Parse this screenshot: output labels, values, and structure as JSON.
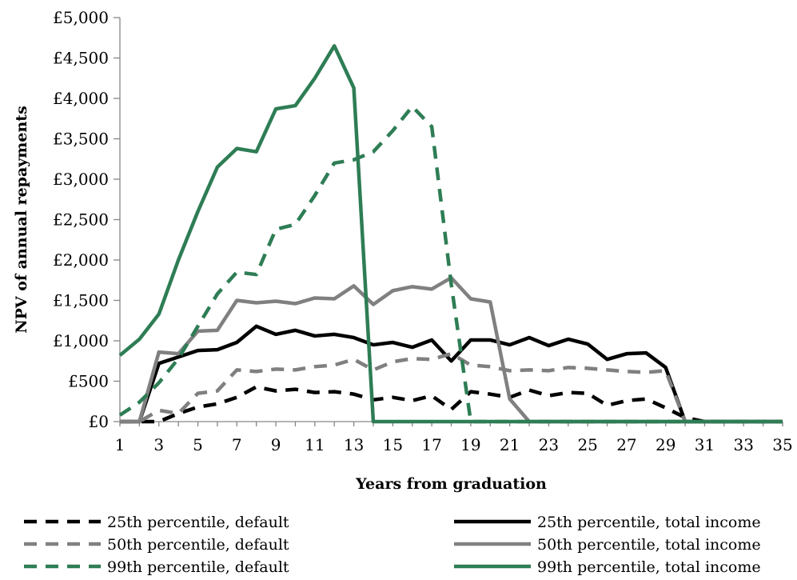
{
  "chart_data": {
    "type": "line",
    "title": "",
    "xlabel": "Years from graduation",
    "ylabel": "NPV of annual repayments",
    "xlim": [
      1,
      35
    ],
    "ylim": [
      0,
      5000
    ],
    "x_ticks": [
      1,
      3,
      5,
      7,
      9,
      11,
      13,
      15,
      17,
      19,
      21,
      23,
      25,
      27,
      29,
      31,
      33,
      35
    ],
    "y_ticks": [
      {
        "value": 0,
        "label": "£0"
      },
      {
        "value": 500,
        "label": "£500"
      },
      {
        "value": 1000,
        "label": "£1,000"
      },
      {
        "value": 1500,
        "label": "£1,500"
      },
      {
        "value": 2000,
        "label": "£2,000"
      },
      {
        "value": 2500,
        "label": "£2,500"
      },
      {
        "value": 3000,
        "label": "£3,000"
      },
      {
        "value": 3500,
        "label": "£3,500"
      },
      {
        "value": 4000,
        "label": "£4,000"
      },
      {
        "value": 4500,
        "label": "£4,500"
      },
      {
        "value": 5000,
        "label": "£5,000"
      }
    ],
    "grid": false,
    "legend_position": "bottom",
    "x": [
      1,
      2,
      3,
      4,
      5,
      6,
      7,
      8,
      9,
      10,
      11,
      12,
      13,
      14,
      15,
      16,
      17,
      18,
      19,
      20,
      21,
      22,
      23,
      24,
      25,
      26,
      27,
      28,
      29,
      30,
      31,
      32,
      33,
      34,
      35
    ],
    "series": [
      {
        "name": "25th percentile, default",
        "color": "#000000",
        "style": "dashed",
        "values": [
          0,
          0,
          0,
          100,
          180,
          220,
          300,
          430,
          380,
          400,
          360,
          370,
          340,
          270,
          300,
          260,
          320,
          150,
          370,
          340,
          300,
          390,
          320,
          360,
          350,
          200,
          260,
          280,
          170,
          50,
          0,
          0,
          0,
          0,
          0
        ]
      },
      {
        "name": "25th percentile, total income",
        "color": "#000000",
        "style": "solid",
        "values": [
          0,
          0,
          720,
          800,
          880,
          890,
          980,
          1180,
          1080,
          1130,
          1060,
          1080,
          1040,
          950,
          980,
          920,
          1010,
          750,
          1010,
          1010,
          950,
          1040,
          940,
          1020,
          960,
          770,
          840,
          850,
          670,
          0,
          0,
          0,
          0,
          0,
          0
        ]
      },
      {
        "name": "50th percentile, default",
        "color": "#808080",
        "style": "dashed",
        "values": [
          0,
          0,
          140,
          100,
          350,
          380,
          640,
          620,
          650,
          640,
          680,
          700,
          770,
          640,
          740,
          780,
          770,
          840,
          700,
          680,
          630,
          640,
          630,
          670,
          660,
          640,
          620,
          610,
          630,
          0,
          0,
          0,
          0,
          0,
          0
        ]
      },
      {
        "name": "50th percentile, total income",
        "color": "#808080",
        "style": "solid",
        "values": [
          0,
          0,
          860,
          840,
          1120,
          1130,
          1500,
          1470,
          1490,
          1460,
          1530,
          1520,
          1680,
          1450,
          1620,
          1670,
          1640,
          1780,
          1520,
          1480,
          280,
          0,
          0,
          0,
          0,
          0,
          0,
          0,
          0,
          0,
          0,
          0,
          0,
          0,
          0
        ]
      },
      {
        "name": "99th percentile, default",
        "color": "#2e7d55",
        "style": "dashed",
        "values": [
          80,
          240,
          480,
          780,
          1180,
          1580,
          1850,
          1820,
          2380,
          2440,
          2800,
          3200,
          3240,
          3340,
          3600,
          3900,
          3650,
          1700,
          0,
          0,
          0,
          0,
          0,
          0,
          0,
          0,
          0,
          0,
          0,
          0,
          0,
          0,
          0,
          0,
          0
        ]
      },
      {
        "name": "99th percentile, total income",
        "color": "#2e7d55",
        "style": "solid",
        "values": [
          820,
          1020,
          1330,
          2000,
          2600,
          3150,
          3380,
          3340,
          3870,
          3910,
          4250,
          4650,
          4130,
          0,
          0,
          0,
          0,
          0,
          0,
          0,
          0,
          0,
          0,
          0,
          0,
          0,
          0,
          0,
          0,
          0,
          0,
          0,
          0,
          0,
          0
        ]
      }
    ],
    "legend": [
      {
        "label": "25th percentile, default",
        "color": "#000000",
        "style": "dashed",
        "column": 0,
        "row": 0
      },
      {
        "label": "25th percentile, total income",
        "color": "#000000",
        "style": "solid",
        "column": 1,
        "row": 0
      },
      {
        "label": "50th percentile, default",
        "color": "#808080",
        "style": "dashed",
        "column": 0,
        "row": 1
      },
      {
        "label": "50th percentile, total income",
        "color": "#808080",
        "style": "solid",
        "column": 1,
        "row": 1
      },
      {
        "label": "99th percentile, default",
        "color": "#2e7d55",
        "style": "dashed",
        "column": 0,
        "row": 2
      },
      {
        "label": "99th percentile, total income",
        "color": "#2e7d55",
        "style": "solid",
        "column": 1,
        "row": 2
      }
    ]
  }
}
